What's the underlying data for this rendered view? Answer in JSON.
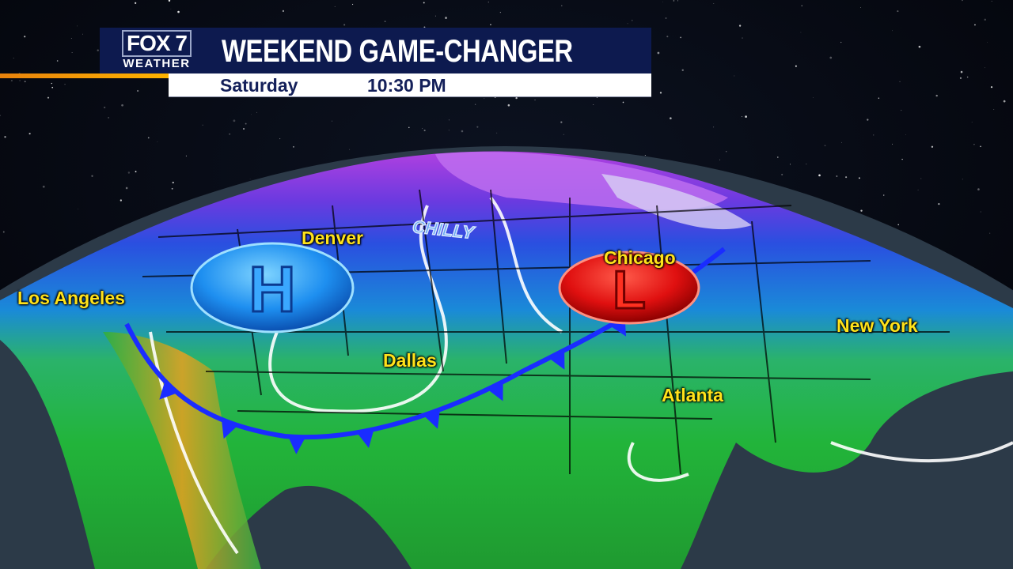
{
  "header": {
    "logo": {
      "brand": "FOX 7",
      "sub": "WEATHER"
    },
    "title": "WEEKEND GAME-CHANGER",
    "day": "Saturday",
    "time": "10:30 PM"
  },
  "map": {
    "pressure_systems": [
      {
        "type": "high",
        "letter": "H",
        "color": "#1e90ff"
      },
      {
        "type": "low",
        "letter": "L",
        "color": "#e01010"
      }
    ],
    "front": {
      "type": "cold",
      "color": "#1a2cff"
    },
    "annotation": "CHILLY",
    "cities": [
      "Los Angeles",
      "Denver",
      "Dallas",
      "Chicago",
      "New York",
      "Atlanta"
    ]
  }
}
